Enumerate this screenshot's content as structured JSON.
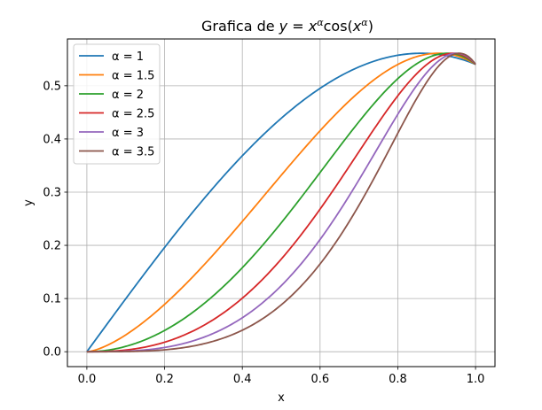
{
  "chart_data": {
    "type": "line",
    "title": "Grafica de y = x^α cos(x^α)",
    "xlabel": "x",
    "ylabel": "y",
    "xlim": [
      -0.05,
      1.05
    ],
    "ylim": [
      -0.028,
      0.588
    ],
    "xticks": [
      "0.0",
      "0.2",
      "0.4",
      "0.6",
      "0.8",
      "1.0"
    ],
    "yticks": [
      "0.0",
      "0.1",
      "0.2",
      "0.3",
      "0.4",
      "0.5"
    ],
    "grid": true,
    "legend_position": "top-left",
    "x": [
      0.0,
      0.1,
      0.2,
      0.3,
      0.4,
      0.5,
      0.6,
      0.7,
      0.8,
      0.85,
      0.9,
      0.95,
      1.0
    ],
    "series": [
      {
        "name": "α = 1",
        "alpha": 1,
        "color": "#1f77b4",
        "values": [
          0.0,
          0.0995,
          0.196,
          0.2866,
          0.3684,
          0.4388,
          0.4952,
          0.5354,
          0.5574,
          0.5604,
          0.5594,
          0.5564,
          0.5403
        ]
      },
      {
        "name": "α = 1.5",
        "alpha": 1.5,
        "color": "#ff7f0e",
        "values": [
          0.0,
          0.0316,
          0.0891,
          0.1617,
          0.2453,
          0.3323,
          0.4147,
          0.4844,
          0.5333,
          0.5498,
          0.5594,
          0.5586,
          0.5403
        ]
      },
      {
        "name": "α = 2",
        "alpha": 2,
        "color": "#2ca02c",
        "values": [
          0.0,
          0.01,
          0.0399,
          0.0896,
          0.158,
          0.2422,
          0.3373,
          0.4353,
          0.5232,
          0.5586,
          0.5605,
          0.5604,
          0.5403
        ]
      },
      {
        "name": "α = 2.5",
        "alpha": 2.5,
        "color": "#d62728",
        "values": [
          0.0,
          0.0032,
          0.0179,
          0.0492,
          0.1007,
          0.1749,
          0.2694,
          0.3762,
          0.4826,
          0.5287,
          0.5581,
          0.5597,
          0.5403
        ]
      },
      {
        "name": "α = 3",
        "alpha": 3,
        "color": "#9467bd",
        "values": [
          0.0,
          0.001,
          0.008,
          0.027,
          0.0638,
          0.1237,
          0.2084,
          0.3142,
          0.4302,
          0.4844,
          0.5323,
          0.5604,
          0.5403
        ]
      },
      {
        "name": "α = 3.5",
        "alpha": 3.5,
        "color": "#8c564b",
        "values": [
          0.0,
          0.0003,
          0.0036,
          0.0148,
          0.0404,
          0.0881,
          0.1567,
          0.2548,
          0.3738,
          0.434,
          0.4946,
          0.5565,
          0.5403
        ]
      }
    ]
  }
}
